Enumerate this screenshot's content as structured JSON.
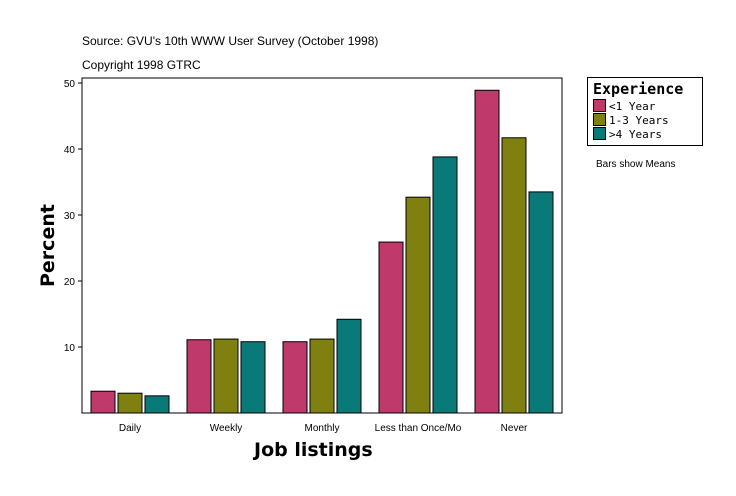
{
  "chart_data": {
    "type": "bar",
    "title": "Source: GVU's 10th WWW User Survey (October 1998)",
    "subtitle": "Copyright 1998 GTRC",
    "xlabel": "Job listings",
    "ylabel": "Percent",
    "note": "Bars show Means",
    "categories": [
      "Daily",
      "Weekly",
      "Monthly",
      "Less than Once/Mo",
      "Never"
    ],
    "yticks": [
      10,
      20,
      30,
      40,
      50
    ],
    "ylim": [
      0,
      50.8
    ],
    "grid": false,
    "legend": {
      "title": "Experience",
      "placement": "right"
    },
    "series": [
      {
        "name": "<1 Year",
        "color": "#c0396b",
        "values": [
          3.3,
          11.1,
          10.8,
          25.9,
          48.9
        ]
      },
      {
        "name": "1-3 Years",
        "color": "#808010",
        "values": [
          3.0,
          11.2,
          11.2,
          32.7,
          41.7
        ]
      },
      {
        "name": ">4 Years",
        "color": "#0a7a78",
        "values": [
          2.6,
          10.8,
          14.2,
          38.8,
          33.5
        ]
      }
    ]
  }
}
